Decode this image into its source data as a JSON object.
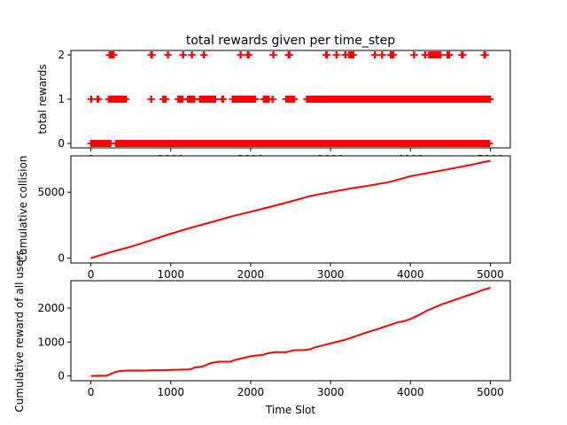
{
  "figure": {
    "background": "#ffffff"
  },
  "chart_data": [
    {
      "type": "scatter",
      "title": "total rewards given per time_step",
      "xlabel": "",
      "ylabel": "total rewards",
      "marker": "+",
      "color": "#ff0000",
      "xlim": [
        -250,
        5250
      ],
      "ylim": [
        -0.1,
        2.1
      ],
      "xticks": [
        0,
        1000,
        2000,
        3000,
        4000,
        5000
      ],
      "xtick_labels": [
        "0",
        "1000",
        "2000",
        "3000",
        "4000",
        "5000"
      ],
      "yticks": [
        0,
        1,
        2
      ],
      "ytick_labels": [
        "0",
        "1",
        "2"
      ],
      "grid": false,
      "series": [
        {
          "values_by_level": {
            "2": [
              [
                230,
                290
              ],
              [
                750,
                770
              ],
              [
                960,
                970
              ],
              [
                1150,
                1160
              ],
              [
                1260,
                1270
              ],
              [
                1410,
                1420
              ],
              [
                1870,
                1880
              ],
              [
                1960,
                1980
              ],
              [
                2280,
                2290
              ],
              [
                2470,
                2490
              ],
              [
                2940,
                2960
              ],
              [
                3070,
                3080
              ],
              [
                3180,
                3190
              ],
              [
                3230,
                3290
              ],
              [
                3550,
                3560
              ],
              [
                3640,
                3650
              ],
              [
                3750,
                3790
              ],
              [
                4040,
                4050
              ],
              [
                4180,
                4190
              ],
              [
                4230,
                4380
              ],
              [
                4460,
                4490
              ],
              [
                4640,
                4660
              ],
              [
                4920,
                4940
              ]
            ],
            "1": [
              [
                0,
                10
              ],
              [
                80,
                100
              ],
              [
                220,
                440
              ],
              [
                750,
                760
              ],
              [
                900,
                940
              ],
              [
                1090,
                1150
              ],
              [
                1210,
                1300
              ],
              [
                1360,
                1560
              ],
              [
                1640,
                1660
              ],
              [
                1770,
                2060
              ],
              [
                2160,
                2230
              ],
              [
                2270,
                2280
              ],
              [
                2440,
                2550
              ],
              [
                2700,
                5000
              ]
            ],
            "0": [
              [
                0,
                250
              ],
              [
                310,
                4990
              ]
            ]
          }
        }
      ]
    },
    {
      "type": "line",
      "title": "",
      "xlabel": "",
      "ylabel": "Cumulative collision",
      "color": "#ff0000",
      "xlim": [
        -250,
        5250
      ],
      "ylim": [
        -370,
        7770
      ],
      "xticks": [
        0,
        1000,
        2000,
        3000,
        4000,
        5000
      ],
      "xtick_labels": [
        "0",
        "1000",
        "2000",
        "3000",
        "4000",
        "5000"
      ],
      "yticks": [
        0,
        5000
      ],
      "ytick_labels": [
        "0",
        "5000"
      ],
      "grid": false,
      "x": [
        0,
        250,
        500,
        750,
        1000,
        1250,
        1500,
        1750,
        2000,
        2250,
        2500,
        2750,
        3000,
        3250,
        3500,
        3750,
        4000,
        4250,
        4500,
        4750,
        5000
      ],
      "series": [
        {
          "values": [
            0,
            460,
            860,
            1350,
            1850,
            2300,
            2720,
            3150,
            3520,
            3900,
            4300,
            4720,
            5010,
            5290,
            5520,
            5800,
            6220,
            6500,
            6780,
            7080,
            7400
          ]
        }
      ]
    },
    {
      "type": "line",
      "title": "",
      "xlabel": "Time Slot",
      "ylabel": "Cumulative reward of all users",
      "color": "#ff0000",
      "xlim": [
        -250,
        5250
      ],
      "ylim": [
        -140,
        2810
      ],
      "xticks": [
        0,
        1000,
        2000,
        3000,
        4000,
        5000
      ],
      "xtick_labels": [
        "0",
        "1000",
        "2000",
        "3000",
        "4000",
        "5000"
      ],
      "yticks": [
        0,
        1000,
        2000
      ],
      "ytick_labels": [
        "0",
        "1000",
        "2000"
      ],
      "grid": false,
      "x": [
        0,
        200,
        250,
        300,
        350,
        450,
        500,
        550,
        700,
        750,
        900,
        1000,
        1050,
        1150,
        1200,
        1250,
        1300,
        1400,
        1450,
        1500,
        1600,
        1650,
        1750,
        1800,
        2000,
        2050,
        2150,
        2200,
        2300,
        2400,
        2450,
        2500,
        2550,
        2650,
        2700,
        2750,
        2800,
        2900,
        3000,
        3100,
        3200,
        3300,
        3400,
        3500,
        3600,
        3700,
        3800,
        3850,
        3900,
        4000,
        4100,
        4200,
        4300,
        4400,
        4500,
        4600,
        4700,
        4800,
        4900,
        5000
      ],
      "series": [
        {
          "values": [
            0,
            10,
            60,
            110,
            140,
            160,
            160,
            160,
            160,
            170,
            170,
            180,
            180,
            190,
            190,
            200,
            250,
            280,
            330,
            380,
            420,
            420,
            420,
            470,
            580,
            600,
            620,
            660,
            700,
            700,
            700,
            740,
            760,
            760,
            770,
            790,
            840,
            900,
            960,
            1020,
            1080,
            1160,
            1240,
            1320,
            1390,
            1470,
            1550,
            1590,
            1600,
            1680,
            1790,
            1920,
            2020,
            2120,
            2200,
            2280,
            2360,
            2440,
            2530,
            2600
          ]
        }
      ]
    }
  ]
}
